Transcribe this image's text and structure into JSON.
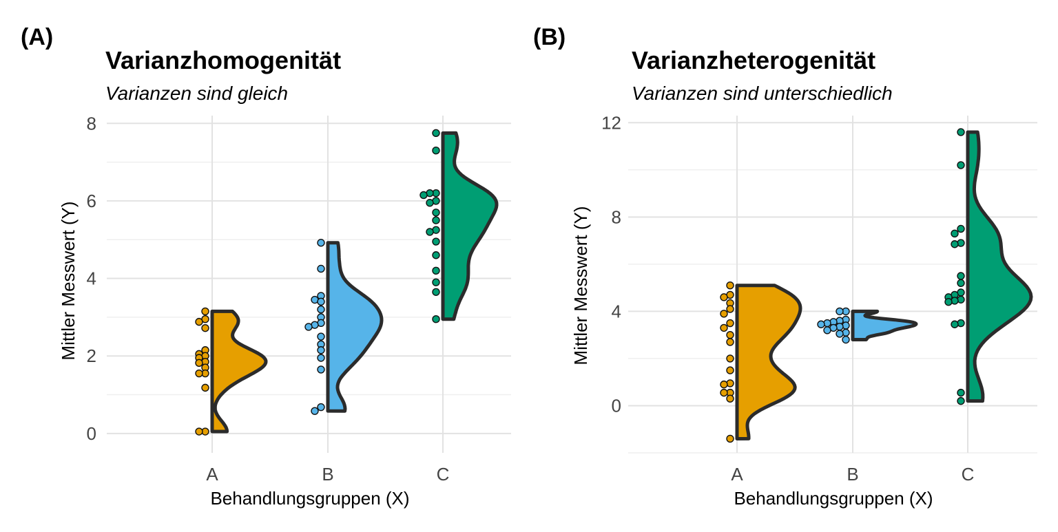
{
  "panels": [
    {
      "tag": "(A)",
      "chart_data": {
        "type": "raincloud",
        "title": "Varianzhomogenität",
        "subtitle": "Varianzen sind gleich",
        "xlabel": "Behandlungsgruppen (X)",
        "ylabel": "Mittler Messwert (Y)",
        "categories": [
          "A",
          "B",
          "C"
        ],
        "ylim": [
          -0.5,
          8.2
        ],
        "yticks": [
          0,
          2,
          4,
          6,
          8
        ],
        "grid": true,
        "series": [
          {
            "category": "A",
            "color": "#E69F00",
            "points": [
              3.15,
              2.95,
              2.88,
              2.72,
              2.15,
              2.05,
              2.0,
              1.95,
              1.85,
              1.82,
              1.7,
              1.55,
              1.55,
              1.18,
              0.05,
              0.05
            ]
          },
          {
            "category": "B",
            "color": "#56B4E9",
            "points": [
              4.92,
              4.25,
              3.55,
              3.45,
              3.4,
              3.2,
              3.0,
              2.85,
              2.8,
              2.75,
              2.5,
              2.3,
              2.15,
              1.95,
              1.65,
              0.68,
              0.58
            ]
          },
          {
            "category": "C",
            "color": "#009E73",
            "points": [
              7.75,
              7.3,
              6.2,
              6.2,
              6.15,
              6.0,
              5.95,
              5.7,
              5.5,
              5.25,
              5.2,
              4.95,
              4.6,
              4.2,
              3.9,
              3.65,
              2.95
            ]
          }
        ]
      }
    },
    {
      "tag": "(B)",
      "chart_data": {
        "type": "raincloud",
        "title": "Varianzheterogenität",
        "subtitle": "Varianzen sind unterschiedlich",
        "xlabel": "Behandlungsgruppen (X)",
        "ylabel": "Mittler Messwert (Y)",
        "categories": [
          "A",
          "B",
          "C"
        ],
        "ylim": [
          -2,
          12.3
        ],
        "yticks": [
          0,
          4,
          8,
          12
        ],
        "grid": true,
        "series": [
          {
            "category": "A",
            "color": "#E69F00",
            "points": [
              5.1,
              4.7,
              4.6,
              4.35,
              4.1,
              3.9,
              3.5,
              3.3,
              3.0,
              2.7,
              2.0,
              1.5,
              0.95,
              0.9,
              0.55,
              0.55,
              0.3,
              -1.4
            ]
          },
          {
            "category": "B",
            "color": "#56B4E9",
            "points": [
              4.0,
              4.0,
              3.65,
              3.6,
              3.55,
              3.5,
              3.45,
              3.4,
              3.35,
              3.3,
              3.2,
              3.1,
              3.05,
              2.8
            ]
          },
          {
            "category": "C",
            "color": "#009E73",
            "points": [
              11.6,
              10.2,
              7.5,
              7.3,
              6.9,
              6.85,
              5.5,
              5.2,
              4.8,
              4.7,
              4.6,
              4.5,
              4.45,
              4.4,
              3.5,
              3.45,
              0.55,
              0.2
            ]
          }
        ]
      }
    }
  ]
}
